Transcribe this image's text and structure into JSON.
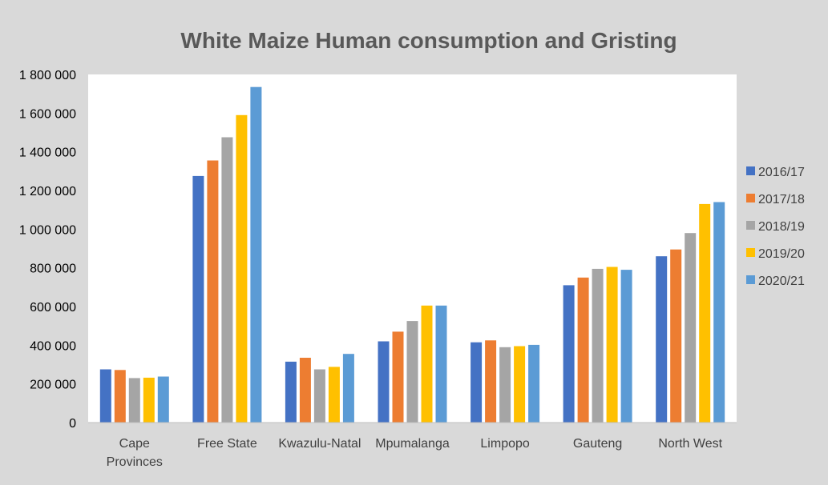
{
  "chart_data": {
    "type": "bar",
    "title": "White Maize Human consumption and Gristing",
    "xlabel": "",
    "ylabel": "",
    "ylim": [
      0,
      1800000
    ],
    "yticks": [
      0,
      200000,
      400000,
      600000,
      800000,
      1000000,
      1200000,
      1400000,
      1600000,
      1800000
    ],
    "ytick_labels": [
      "0",
      "200 000",
      "400 000",
      "600 000",
      "800 000",
      "1 000 000",
      "1 200 000",
      "1 400 000",
      "1 600 000",
      "1 800 000"
    ],
    "categories": [
      "Cape Provinces",
      "Free State",
      "Kwazulu-Natal",
      "Mpumalanga",
      "Limpopo",
      "Gauteng",
      "North West"
    ],
    "category_lines": [
      [
        "Cape",
        "Provinces"
      ],
      [
        "Free State"
      ],
      [
        "Kwazulu-Natal"
      ],
      [
        "Mpumalanga"
      ],
      [
        "Limpopo"
      ],
      [
        "Gauteng"
      ],
      [
        "North West"
      ]
    ],
    "series": [
      {
        "name": "2016/17",
        "color": "#4472c4",
        "values": [
          275000,
          1275000,
          315000,
          420000,
          415000,
          710000,
          860000
        ]
      },
      {
        "name": "2017/18",
        "color": "#ed7d31",
        "values": [
          272000,
          1355000,
          335000,
          470000,
          425000,
          750000,
          895000
        ]
      },
      {
        "name": "2018/19",
        "color": "#a5a5a5",
        "values": [
          230000,
          1475000,
          275000,
          525000,
          390000,
          795000,
          980000
        ]
      },
      {
        "name": "2019/20",
        "color": "#ffc000",
        "values": [
          232000,
          1590000,
          288000,
          605000,
          395000,
          805000,
          1130000
        ]
      },
      {
        "name": "2020/21",
        "color": "#5b9bd5",
        "values": [
          238000,
          1735000,
          355000,
          605000,
          402000,
          790000,
          1140000
        ]
      }
    ],
    "grid": false,
    "legend_position": "right",
    "plot_background": "#ffffff",
    "background": "#d9d9d9"
  }
}
